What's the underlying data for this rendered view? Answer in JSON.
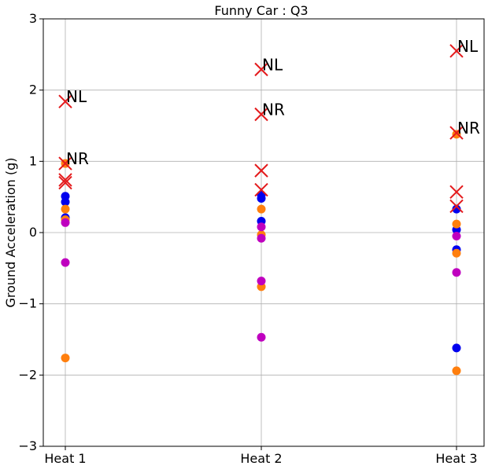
{
  "chart_data": {
    "type": "scatter",
    "title": "Funny Car : Q3",
    "xlabel": "",
    "ylabel": "Ground Acceleration (g)",
    "categories": [
      "Heat 1",
      "Heat 2",
      "Heat 3"
    ],
    "ylim": [
      -3,
      3
    ],
    "yticks": [
      "−3",
      "−2",
      "−1",
      "0",
      "1",
      "2",
      "3"
    ],
    "grid": true,
    "series": [
      {
        "color": "#0000ee",
        "marker": "circle",
        "points": [
          {
            "x": "Heat 1",
            "y": 0.51
          },
          {
            "x": "Heat 1",
            "y": 0.43
          },
          {
            "x": "Heat 1",
            "y": 0.21
          },
          {
            "x": "Heat 2",
            "y": 0.53
          },
          {
            "x": "Heat 2",
            "y": 0.48
          },
          {
            "x": "Heat 2",
            "y": 0.16
          },
          {
            "x": "Heat 3",
            "y": 0.33
          },
          {
            "x": "Heat 3",
            "y": 0.04
          },
          {
            "x": "Heat 3",
            "y": -0.24
          },
          {
            "x": "Heat 3",
            "y": -1.62
          }
        ]
      },
      {
        "color": "#ff7f0e",
        "marker": "circle",
        "points": [
          {
            "x": "Heat 1",
            "y": 0.97
          },
          {
            "x": "Heat 1",
            "y": 0.33
          },
          {
            "x": "Heat 1",
            "y": 0.18
          },
          {
            "x": "Heat 1",
            "y": -1.76
          },
          {
            "x": "Heat 2",
            "y": 0.33
          },
          {
            "x": "Heat 2",
            "y": -0.03
          },
          {
            "x": "Heat 2",
            "y": -0.76
          },
          {
            "x": "Heat 3",
            "y": 1.38
          },
          {
            "x": "Heat 3",
            "y": 0.12
          },
          {
            "x": "Heat 3",
            "y": -0.29
          },
          {
            "x": "Heat 3",
            "y": -1.94
          }
        ]
      },
      {
        "color": "#bf00bf",
        "marker": "circle",
        "points": [
          {
            "x": "Heat 1",
            "y": 0.14
          },
          {
            "x": "Heat 1",
            "y": -0.42
          },
          {
            "x": "Heat 2",
            "y": 0.08
          },
          {
            "x": "Heat 2",
            "y": -0.08
          },
          {
            "x": "Heat 2",
            "y": -0.68
          },
          {
            "x": "Heat 2",
            "y": -1.47
          },
          {
            "x": "Heat 3",
            "y": -0.05
          },
          {
            "x": "Heat 3",
            "y": -0.56
          }
        ]
      },
      {
        "color": "#e41a1c",
        "marker": "x",
        "points": [
          {
            "x": "Heat 1",
            "y": 1.84
          },
          {
            "x": "Heat 1",
            "y": 0.97
          },
          {
            "x": "Heat 1",
            "y": 0.74
          },
          {
            "x": "Heat 1",
            "y": 0.7
          },
          {
            "x": "Heat 2",
            "y": 2.29
          },
          {
            "x": "Heat 2",
            "y": 1.66
          },
          {
            "x": "Heat 2",
            "y": 0.87
          },
          {
            "x": "Heat 2",
            "y": 0.6
          },
          {
            "x": "Heat 3",
            "y": 2.55
          },
          {
            "x": "Heat 3",
            "y": 1.4
          },
          {
            "x": "Heat 3",
            "y": 0.57
          },
          {
            "x": "Heat 3",
            "y": 0.37
          }
        ]
      }
    ],
    "annotations": [
      {
        "text": "NL",
        "x": "Heat 1",
        "y": 1.84
      },
      {
        "text": "NR",
        "x": "Heat 1",
        "y": 0.97
      },
      {
        "text": "NL",
        "x": "Heat 2",
        "y": 2.29
      },
      {
        "text": "NR",
        "x": "Heat 2",
        "y": 1.66
      },
      {
        "text": "NL",
        "x": "Heat 3",
        "y": 2.55
      },
      {
        "text": "NR",
        "x": "Heat 3",
        "y": 1.4
      }
    ]
  }
}
